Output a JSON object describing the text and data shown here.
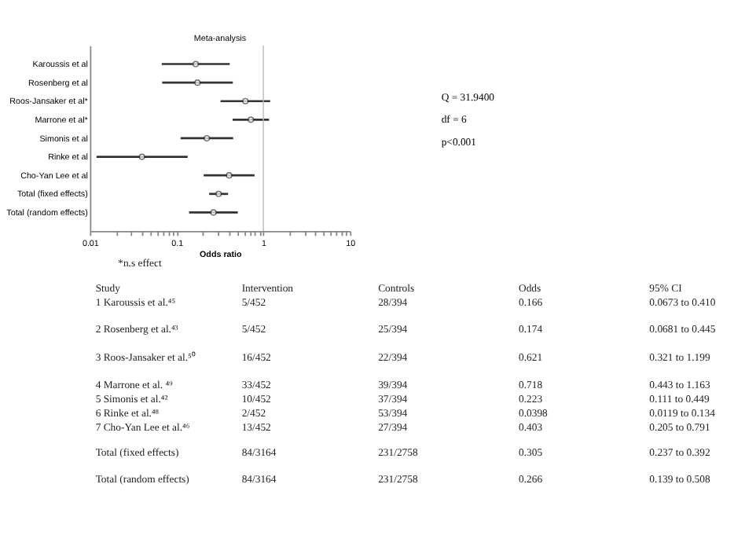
{
  "chart_data": {
    "type": "scatter",
    "title": "Meta-analysis",
    "xlabel": "Odds ratio",
    "orientation": "horizontal",
    "categories": [
      "Karoussis et al",
      "Rosenberg et al",
      "Roos-Jansaker et al*",
      "Marrone et al*",
      "Simonis et al",
      "Rinke et al",
      "Cho-Yan Lee et al",
      "Total (fixed effects)",
      "Total (random effects)"
    ],
    "series": [
      {
        "color": "#333333",
        "values": [
          0.166,
          0.174,
          0.621,
          0.718,
          0.223,
          0.0398,
          0.403,
          0.305,
          0.266
        ],
        "errors": [
          [
            0.0673,
            0.41
          ],
          [
            0.0681,
            0.445
          ],
          [
            0.321,
            1.199
          ],
          [
            0.443,
            1.163
          ],
          [
            0.111,
            0.449
          ],
          [
            0.0119,
            0.134
          ],
          [
            0.205,
            0.791
          ],
          [
            0.237,
            0.392
          ],
          [
            0.139,
            0.508
          ]
        ]
      }
    ],
    "marker": "circle",
    "log": "x",
    "grid": false,
    "xlim": [
      0.01,
      10
    ],
    "xticks": [
      {
        "value": 0.01,
        "label": "0.01"
      },
      {
        "value": 0.02,
        "label": null
      },
      {
        "value": 0.03,
        "label": null
      },
      {
        "value": 0.04,
        "label": null
      },
      {
        "value": 0.05,
        "label": null
      },
      {
        "value": 0.06,
        "label": null
      },
      {
        "value": 0.07,
        "label": null
      },
      {
        "value": 0.08,
        "label": null
      },
      {
        "value": 0.09,
        "label": null
      },
      {
        "value": 0.1,
        "label": "0.1"
      },
      {
        "value": 0.2,
        "label": null
      },
      {
        "value": 0.3,
        "label": null
      },
      {
        "value": 0.4,
        "label": null
      },
      {
        "value": 0.5,
        "label": null
      },
      {
        "value": 0.6,
        "label": null
      },
      {
        "value": 0.7,
        "label": null
      },
      {
        "value": 0.8,
        "label": null
      },
      {
        "value": 0.9,
        "label": null
      },
      {
        "value": 1,
        "label": "1"
      },
      {
        "value": 2,
        "label": null
      },
      {
        "value": 3,
        "label": null
      },
      {
        "value": 4,
        "label": null
      },
      {
        "value": 5,
        "label": null
      },
      {
        "value": 6,
        "label": null
      },
      {
        "value": 7,
        "label": null
      },
      {
        "value": 8,
        "label": null
      },
      {
        "value": 9,
        "label": null
      },
      {
        "value": 10,
        "label": "10"
      }
    ],
    "ref_lines": [
      {
        "axis": "x",
        "value": 1,
        "color": "#bbbbbb"
      }
    ],
    "annotations": [
      "Q = 31.9400",
      "df = 6",
      "p<0.001",
      "*n.s effect",
      "Study",
      "Intervention",
      "Controls",
      "Odds",
      "95% CI",
      "1 Karoussis et al.⁴⁵",
      "5/452",
      "28/394",
      "0.166",
      "0.0673 to 0.410",
      "2 Rosenberg et al.⁴³",
      "5/452",
      "25/394",
      "0.174",
      "0.0681 to 0.445",
      "3 Roos-Jansaker et al.⁵⁰",
      "16/452",
      "22/394",
      "0.621",
      "0.321 to 1.199",
      "4 Marrone et al. ⁴⁹",
      "33/452",
      "39/394",
      "0.718",
      "0.443 to 1.163",
      "5 Simonis et al.⁴²",
      "10/452",
      "37/394",
      "0.223",
      "0.111 to 0.449",
      "6 Rinke et al.⁴⁸",
      "2/452",
      "53/394",
      "0.0398",
      "0.0119 to 0.134",
      "7 Cho-Yan Lee et al.⁴⁶",
      "13/452",
      "27/394",
      "0.403",
      "0.205 to 0.791",
      "Total (fixed effects)",
      "84/3164",
      "231/2758",
      "0.305",
      "0.237 to 0.392",
      "Total (random effects)",
      "84/3164",
      "231/2758",
      "0.266",
      "0.139 to 0.508"
    ]
  }
}
